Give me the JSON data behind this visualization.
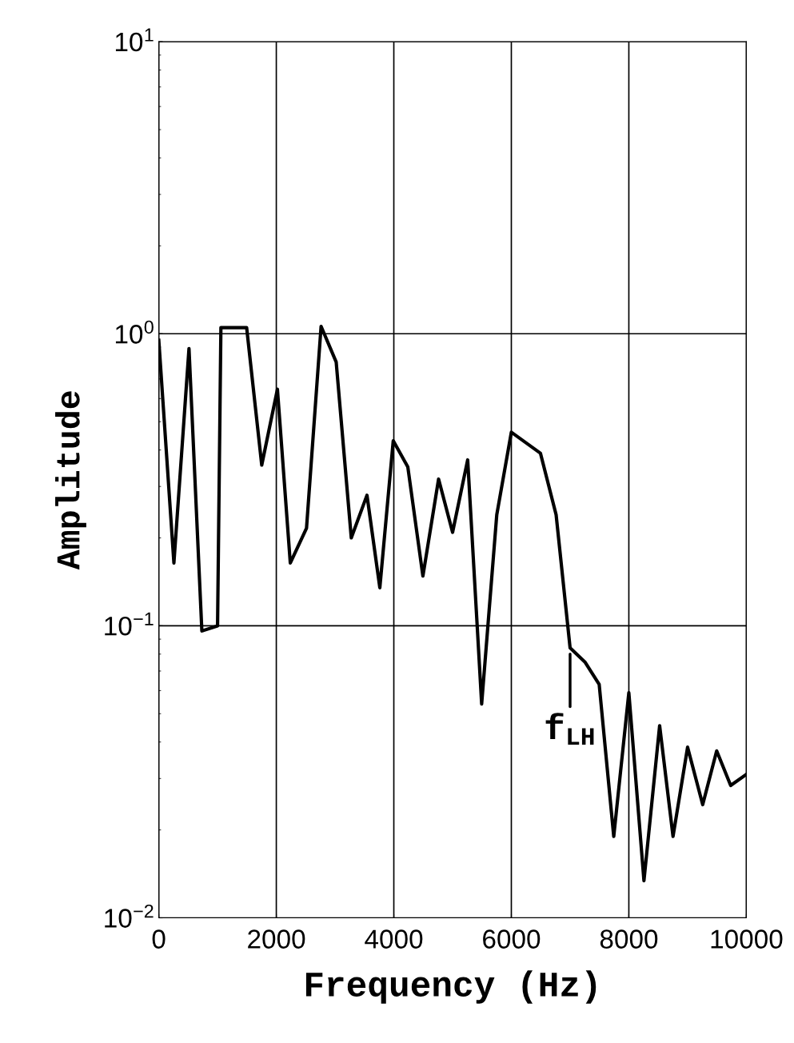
{
  "chart_data": {
    "type": "line",
    "xlabel": "Frequency (Hz)",
    "ylabel": "Amplitude",
    "x": [
      0,
      257,
      514,
      733,
      1000,
      1057,
      1495,
      1752,
      2019,
      2238,
      2514,
      2762,
      3019,
      3276,
      3543,
      3762,
      3990,
      4238,
      4495,
      4762,
      5000,
      5257,
      5495,
      5752,
      6000,
      6495,
      6762,
      7000,
      7257,
      7495,
      7743,
      8000,
      8257,
      8524,
      8752,
      9000,
      9257,
      9495,
      9733,
      10000
    ],
    "series": [
      {
        "color": "#000000",
        "values": [
          0.95,
          0.164,
          0.89,
          0.096,
          0.1,
          1.05,
          1.05,
          0.355,
          0.646,
          0.164,
          0.216,
          1.06,
          0.8,
          0.2,
          0.28,
          0.135,
          0.43,
          0.35,
          0.148,
          0.318,
          0.209,
          0.37,
          0.054,
          0.24,
          0.46,
          0.39,
          0.24,
          0.084,
          0.075,
          0.063,
          0.019,
          0.059,
          0.0134,
          0.0455,
          0.019,
          0.0384,
          0.0244,
          0.0373,
          0.0284,
          0.031
        ]
      }
    ],
    "xlim": [
      0,
      10000
    ],
    "xticks": [
      0,
      2000,
      4000,
      6000,
      8000,
      10000
    ],
    "log": "y",
    "ylim": [
      0.01,
      10
    ],
    "yticks": [
      {
        "value": 10,
        "label": "10$^{1}$"
      },
      {
        "value": 1,
        "label": "10$^{0}$"
      },
      {
        "value": 0.1,
        "label": "10$^{−1}$"
      },
      {
        "value": 0.01,
        "label": "10$^{−2}$"
      }
    ],
    "annotations": [
      {
        "text": "f$_{LH}$",
        "x": 7000,
        "y": 0.08
      }
    ],
    "grid": true,
    "legend": false
  }
}
